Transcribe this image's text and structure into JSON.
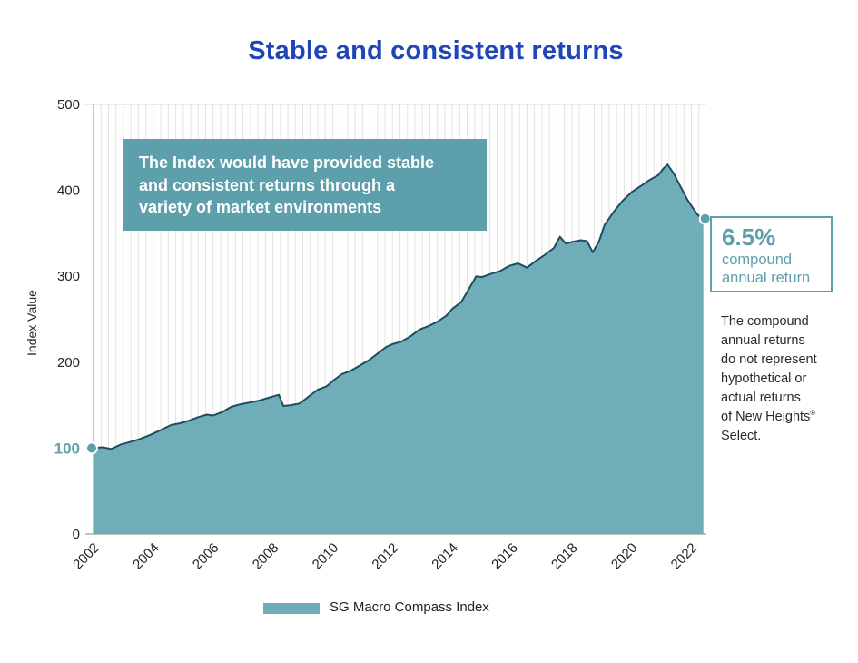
{
  "title": "Stable and consistent returns",
  "callout": {
    "lines": [
      "The Index would have provided stable",
      "and consistent returns through a",
      "variety of market environments"
    ]
  },
  "cagr": {
    "value": "6.5%",
    "label_line1": "compound",
    "label_line2": "annual return"
  },
  "note": {
    "lines": [
      "The compound",
      "annual returns",
      "do not represent",
      "hypothetical or",
      "actual returns",
      "of New Heights"
    ],
    "registered_mark": "®",
    "last_line": "Select."
  },
  "legend": {
    "label": "SG Macro Compass Index"
  },
  "colors": {
    "title": "#1f45b8",
    "fill": "#6fadb9",
    "line": "#1e4d62",
    "accent": "#5d9faa"
  },
  "chart_data": {
    "type": "area",
    "title": "Stable and consistent returns",
    "xlabel": "",
    "ylabel": "Index Value",
    "ylim": [
      0,
      500
    ],
    "xlim": [
      2002.0,
      2022.5
    ],
    "yticks": [
      "0",
      "100",
      "200",
      "300",
      "400",
      "500"
    ],
    "ytick_values": [
      0,
      100,
      200,
      300,
      400,
      500
    ],
    "xticks": [
      "2002",
      "2004",
      "2006",
      "2008",
      "2010",
      "2012",
      "2014",
      "2016",
      "2018",
      "2020",
      "2022"
    ],
    "xtick_values": [
      2002,
      2004,
      2006,
      2008,
      2010,
      2012,
      2014,
      2016,
      2018,
      2020,
      2022
    ],
    "start_label": "100",
    "grid": "vertical",
    "series": [
      {
        "name": "SG Macro Compass Index",
        "x": [
          2002.0,
          2002.3,
          2002.6,
          2002.9,
          2003.2,
          2003.5,
          2003.8,
          2004.0,
          2004.3,
          2004.6,
          2004.9,
          2005.2,
          2005.5,
          2005.8,
          2006.0,
          2006.3,
          2006.6,
          2006.9,
          2007.2,
          2007.5,
          2007.8,
          2008.0,
          2008.2,
          2008.35,
          2008.6,
          2008.9,
          2009.2,
          2009.5,
          2009.8,
          2010.0,
          2010.3,
          2010.6,
          2010.9,
          2011.2,
          2011.5,
          2011.8,
          2012.0,
          2012.3,
          2012.6,
          2012.9,
          2013.2,
          2013.5,
          2013.8,
          2014.0,
          2014.3,
          2014.6,
          2014.8,
          2015.0,
          2015.3,
          2015.6,
          2015.9,
          2016.2,
          2016.5,
          2016.8,
          2017.1,
          2017.4,
          2017.6,
          2017.8,
          2018.0,
          2018.3,
          2018.5,
          2018.7,
          2018.9,
          2019.1,
          2019.4,
          2019.7,
          2020.0,
          2020.3,
          2020.6,
          2020.9,
          2021.05,
          2021.2,
          2021.4,
          2021.55,
          2021.7,
          2021.85,
          2022.0,
          2022.2,
          2022.4
        ],
        "values": [
          100,
          101,
          99,
          104,
          107,
          110,
          114,
          117,
          122,
          127,
          129,
          132,
          136,
          139,
          138,
          142,
          148,
          151,
          153,
          155,
          158,
          160,
          162,
          149,
          150,
          152,
          160,
          168,
          172,
          178,
          186,
          190,
          196,
          202,
          210,
          218,
          221,
          224,
          230,
          238,
          242,
          247,
          254,
          262,
          270,
          288,
          300,
          299,
          303,
          306,
          312,
          315,
          310,
          318,
          325,
          333,
          346,
          338,
          340,
          342,
          341,
          328,
          340,
          360,
          375,
          388,
          398,
          405,
          412,
          418,
          425,
          430,
          420,
          410,
          400,
          390,
          382,
          372,
          365
        ]
      }
    ]
  }
}
